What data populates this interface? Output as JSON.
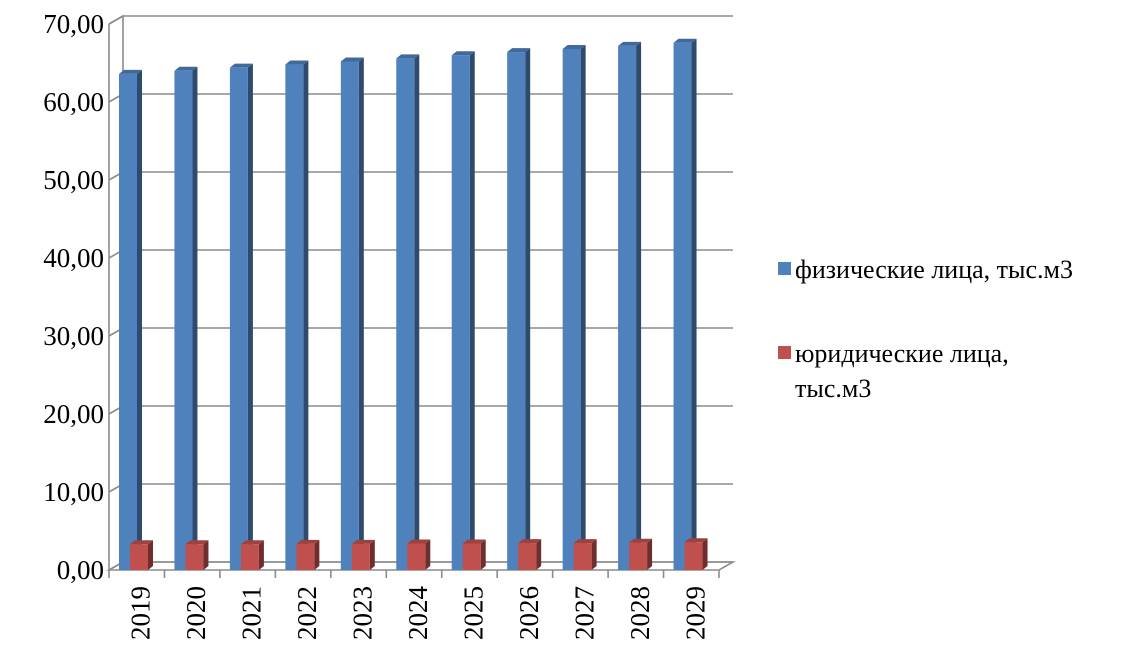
{
  "chart_data": {
    "type": "bar",
    "categories": [
      "2019",
      "2020",
      "2021",
      "2022",
      "2023",
      "2024",
      "2025",
      "2026",
      "2027",
      "2028",
      "2029"
    ],
    "series": [
      {
        "name": "физические лица, тыс.м3",
        "values": [
          63.6,
          64.0,
          64.4,
          64.8,
          65.2,
          65.6,
          66.0,
          66.4,
          66.8,
          67.2,
          67.6
        ],
        "color": "#4F81BD"
      },
      {
        "name": "юридические лица, тыс.м3",
        "values": [
          3.3,
          3.3,
          3.3,
          3.35,
          3.35,
          3.4,
          3.4,
          3.45,
          3.45,
          3.5,
          3.55
        ],
        "color": "#C0504D"
      }
    ],
    "y_ticks": [
      "0,00",
      "10,00",
      "20,00",
      "30,00",
      "40,00",
      "50,00",
      "60,00",
      "70,00"
    ],
    "ylim": [
      0,
      70
    ],
    "grid": true,
    "legend": "right",
    "title": "",
    "xlabel": "",
    "ylabel": ""
  }
}
